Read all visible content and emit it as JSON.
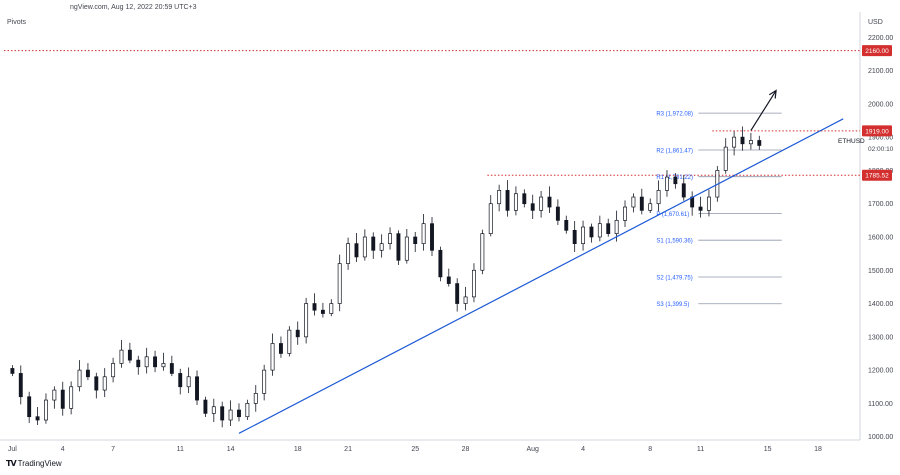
{
  "header": {
    "source": "ngView.com, Aug 12, 2022 20:59 UTC+3",
    "indicator": "Pivots"
  },
  "footer": {
    "brand": "TradingView",
    "logo_mark": "TV"
  },
  "chart_data": {
    "type": "candlestick",
    "symbol": "ETHUSD",
    "currency": "USD",
    "countdown": "02:00:10",
    "ylim": [
      990,
      2270
    ],
    "yticks": [
      1000,
      1100,
      1200,
      1300,
      1400,
      1500,
      1600,
      1700,
      1800,
      1900,
      2000,
      2100,
      2200
    ],
    "ytick_labels": [
      "1000.00",
      "1100.00",
      "1200.00",
      "1300.00",
      "1400.00",
      "1500.00",
      "1600.00",
      "1700.00",
      "1800.00",
      "1900.00",
      "2000.00",
      "2100.00",
      "2200.00"
    ],
    "xticks": [
      {
        "day": 0,
        "label": "Jul"
      },
      {
        "day": 3,
        "label": "4"
      },
      {
        "day": 6,
        "label": "7"
      },
      {
        "day": 10,
        "label": "11"
      },
      {
        "day": 13,
        "label": "14"
      },
      {
        "day": 17,
        "label": "18"
      },
      {
        "day": 20,
        "label": "21"
      },
      {
        "day": 24,
        "label": "25"
      },
      {
        "day": 27,
        "label": "28"
      },
      {
        "day": 31,
        "label": "Aug"
      },
      {
        "day": 34,
        "label": "4"
      },
      {
        "day": 38,
        "label": "8"
      },
      {
        "day": 41,
        "label": "11"
      },
      {
        "day": 45,
        "label": "15"
      },
      {
        "day": 48,
        "label": "18"
      }
    ],
    "xlim": [
      -0.5,
      50.5
    ],
    "price_labels": [
      {
        "value": 2160.0,
        "text": "2160.00",
        "color": "#d32f2f"
      },
      {
        "value": 1919.0,
        "text": "1919.00",
        "color": "#d32f2f"
      },
      {
        "value": 1785.52,
        "text": "1785.52",
        "color": "#d32f2f"
      }
    ],
    "horizontal_lines": [
      {
        "value": 2160.0,
        "from_day": -0.5,
        "to_day": 50.5,
        "color": "#d32f2f"
      },
      {
        "value": 1919.0,
        "from_day": 41.7,
        "to_day": 50.5,
        "color": "#d32f2f"
      },
      {
        "value": 1785.52,
        "from_day": 28.3,
        "to_day": 50.5,
        "color": "#d32f2f"
      }
    ],
    "pivots": [
      {
        "label": "R3 (1,972.08)",
        "value": 1972.08
      },
      {
        "label": "R2 (1,861.47)",
        "value": 1861.47
      },
      {
        "label": "R1 (1,781.22)",
        "value": 1781.22
      },
      {
        "label": "P (1,670.61)",
        "value": 1670.61
      },
      {
        "label": "S1 (1,590.36)",
        "value": 1590.36
      },
      {
        "label": "S2 (1,479.75)",
        "value": 1479.75
      },
      {
        "label": "S3 (1,399.5)",
        "value": 1399.5
      }
    ],
    "pivot_span": {
      "from_day": 39.2,
      "to_day": 45.0
    },
    "trendline": {
      "points": [
        [
          13.5,
          1010
        ],
        [
          49.5,
          1955
        ]
      ],
      "color": "#1e5bd6"
    },
    "arrow": {
      "from": [
        44.0,
        1920
      ],
      "to": [
        45.5,
        2040
      ]
    },
    "candles_seed": [
      [
        0,
        1190
      ],
      [
        0.5,
        1120
      ],
      [
        1,
        1060
      ],
      [
        1.5,
        1050
      ],
      [
        2,
        1110
      ],
      [
        2.5,
        1140
      ],
      [
        3,
        1085
      ],
      [
        3.5,
        1150
      ],
      [
        4,
        1200
      ],
      [
        4.5,
        1180
      ],
      [
        5,
        1140
      ],
      [
        5.5,
        1180
      ],
      [
        6,
        1220
      ],
      [
        6.5,
        1260
      ],
      [
        7,
        1230
      ],
      [
        7.5,
        1210
      ],
      [
        8,
        1240
      ],
      [
        8.5,
        1210
      ],
      [
        9,
        1220
      ],
      [
        9.5,
        1190
      ],
      [
        10,
        1150
      ],
      [
        10.5,
        1180
      ],
      [
        11,
        1110
      ],
      [
        11.5,
        1070
      ],
      [
        12,
        1090
      ],
      [
        12.5,
        1050
      ],
      [
        13,
        1080
      ],
      [
        13.5,
        1060
      ],
      [
        14,
        1100
      ],
      [
        14.5,
        1130
      ],
      [
        15,
        1200
      ],
      [
        15.5,
        1280
      ],
      [
        16,
        1250
      ],
      [
        16.5,
        1320
      ],
      [
        17,
        1300
      ],
      [
        17.5,
        1400
      ],
      [
        18,
        1380
      ],
      [
        18.5,
        1370
      ],
      [
        19,
        1400
      ],
      [
        19.5,
        1520
      ],
      [
        20,
        1580
      ],
      [
        20.5,
        1540
      ],
      [
        21,
        1600
      ],
      [
        21.5,
        1560
      ],
      [
        22,
        1580
      ],
      [
        22.5,
        1610
      ],
      [
        23,
        1530
      ],
      [
        23.5,
        1600
      ],
      [
        24,
        1580
      ],
      [
        24.5,
        1640
      ],
      [
        25,
        1560
      ],
      [
        25.5,
        1480
      ],
      [
        26,
        1460
      ],
      [
        26.5,
        1400
      ],
      [
        27,
        1420
      ],
      [
        27.5,
        1500
      ],
      [
        28,
        1610
      ],
      [
        28.5,
        1700
      ],
      [
        29,
        1740
      ],
      [
        29.5,
        1680
      ],
      [
        30,
        1730
      ],
      [
        30.5,
        1700
      ],
      [
        31,
        1680
      ],
      [
        31.5,
        1720
      ],
      [
        32,
        1690
      ],
      [
        32.5,
        1650
      ],
      [
        33,
        1620
      ],
      [
        33.5,
        1580
      ],
      [
        34,
        1630
      ],
      [
        34.5,
        1600
      ],
      [
        35,
        1640
      ],
      [
        35.5,
        1610
      ],
      [
        36,
        1650
      ],
      [
        36.5,
        1690
      ],
      [
        37,
        1720
      ],
      [
        37.5,
        1680
      ],
      [
        38,
        1700
      ],
      [
        38.5,
        1740
      ],
      [
        39,
        1780
      ],
      [
        39.5,
        1760
      ],
      [
        40,
        1720
      ],
      [
        40.5,
        1690
      ],
      [
        41,
        1680
      ],
      [
        41.5,
        1720
      ],
      [
        42,
        1800
      ],
      [
        42.5,
        1870
      ],
      [
        43,
        1900
      ],
      [
        43.5,
        1880
      ],
      [
        44,
        1890
      ],
      [
        44.5,
        1875
      ]
    ]
  }
}
